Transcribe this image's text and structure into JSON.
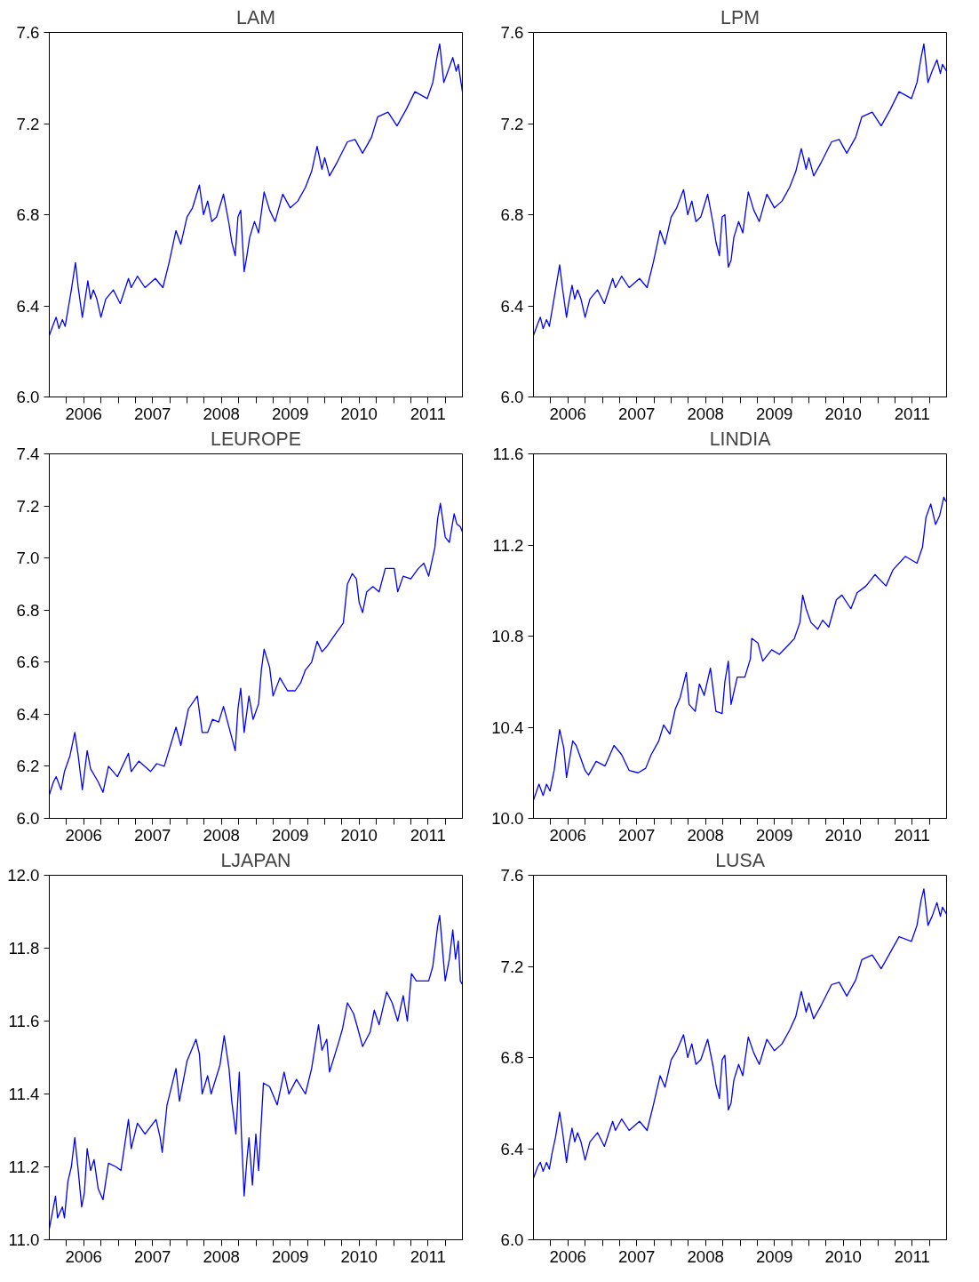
{
  "chart_data": [
    {
      "type": "line",
      "title": "LAM",
      "xlim": [
        2006,
        2012
      ],
      "ylim": [
        6.0,
        7.6
      ],
      "yticks": [
        {
          "value": 6.0,
          "label": "6.0"
        },
        6.4,
        6.8,
        7.2,
        7.6
      ],
      "grid": false,
      "xticks": [
        {
          "value": 2006.25,
          "label": null
        },
        {
          "value": 2006.5,
          "label": "2006"
        },
        {
          "value": 2006.75,
          "label": null
        },
        {
          "value": 2007,
          "label": null
        },
        {
          "value": 2007.25,
          "label": null
        },
        {
          "value": 2007.5,
          "label": "2007"
        },
        {
          "value": 2007.75,
          "label": null
        },
        {
          "value": 2008,
          "label": null
        },
        {
          "value": 2008.25,
          "label": null
        },
        {
          "value": 2008.5,
          "label": "2008"
        },
        {
          "value": 2008.75,
          "label": null
        },
        {
          "value": 2009,
          "label": null
        },
        {
          "value": 2009.25,
          "label": null
        },
        {
          "value": 2009.5,
          "label": "2009"
        },
        {
          "value": 2009.75,
          "label": null
        },
        {
          "value": 2010,
          "label": null
        },
        {
          "value": 2010.25,
          "label": null
        },
        {
          "value": 2010.5,
          "label": "2010"
        },
        {
          "value": 2010.75,
          "label": null
        },
        {
          "value": 2011,
          "label": null
        },
        {
          "value": 2011.25,
          "label": null
        },
        {
          "value": 2011.5,
          "label": "2011"
        },
        {
          "value": 2011.75,
          "label": null
        }
      ],
      "x": [
        2006.0,
        2006.06,
        2006.1,
        2006.14,
        2006.19,
        2006.23,
        2006.27,
        2006.32,
        2006.38,
        2006.42,
        2006.48,
        2006.51,
        2006.56,
        2006.6,
        2006.64,
        2006.69,
        2006.75,
        2006.82,
        2006.93,
        2007.03,
        2007.15,
        2007.19,
        2007.28,
        2007.39,
        2007.54,
        2007.65,
        2007.74,
        2007.84,
        2007.91,
        2008.0,
        2008.08,
        2008.18,
        2008.24,
        2008.3,
        2008.36,
        2008.43,
        2008.53,
        2008.61,
        2008.65,
        2008.7,
        2008.74,
        2008.78,
        2008.83,
        2008.87,
        2008.91,
        2008.98,
        2009.04,
        2009.12,
        2009.2,
        2009.28,
        2009.39,
        2009.5,
        2009.61,
        2009.72,
        2009.81,
        2009.89,
        2009.96,
        2010.0,
        2010.07,
        2010.18,
        2010.33,
        2010.44,
        2010.55,
        2010.68,
        2010.77,
        2010.92,
        2011.05,
        2011.18,
        2011.31,
        2011.49,
        2011.57,
        2011.63,
        2011.67,
        2011.73,
        2011.79,
        2011.86,
        2011.91,
        2011.94,
        2012.0
      ],
      "series": [
        {
          "color": "#0000ff",
          "values": [
            6.27,
            6.32,
            6.35,
            6.3,
            6.34,
            6.31,
            6.38,
            6.47,
            6.59,
            6.48,
            6.35,
            6.41,
            6.51,
            6.43,
            6.47,
            6.43,
            6.35,
            6.43,
            6.47,
            6.41,
            6.52,
            6.48,
            6.53,
            6.48,
            6.52,
            6.48,
            6.59,
            6.73,
            6.67,
            6.79,
            6.83,
            6.93,
            6.8,
            6.86,
            6.77,
            6.79,
            6.89,
            6.76,
            6.68,
            6.62,
            6.79,
            6.82,
            6.55,
            6.62,
            6.7,
            6.77,
            6.72,
            6.9,
            6.82,
            6.77,
            6.89,
            6.83,
            6.86,
            6.92,
            6.99,
            7.1,
            7.0,
            7.05,
            6.97,
            7.03,
            7.12,
            7.13,
            7.07,
            7.14,
            7.23,
            7.25,
            7.19,
            7.26,
            7.34,
            7.31,
            7.38,
            7.49,
            7.55,
            7.38,
            7.43,
            7.49,
            7.43,
            7.46,
            7.34
          ]
        }
      ]
    },
    {
      "type": "line",
      "title": "LPM",
      "xlim": [
        2006,
        2012
      ],
      "ylim": [
        6.0,
        7.6
      ],
      "yticks": [
        {
          "value": 6.0,
          "label": "6.0"
        },
        6.4,
        6.8,
        7.2,
        7.6
      ],
      "grid": false,
      "xticks": [
        {
          "value": 2006.25,
          "label": null
        },
        {
          "value": 2006.5,
          "label": "2006"
        },
        {
          "value": 2006.75,
          "label": null
        },
        {
          "value": 2007,
          "label": null
        },
        {
          "value": 2007.25,
          "label": null
        },
        {
          "value": 2007.5,
          "label": "2007"
        },
        {
          "value": 2007.75,
          "label": null
        },
        {
          "value": 2008,
          "label": null
        },
        {
          "value": 2008.25,
          "label": null
        },
        {
          "value": 2008.5,
          "label": "2008"
        },
        {
          "value": 2008.75,
          "label": null
        },
        {
          "value": 2009,
          "label": null
        },
        {
          "value": 2009.25,
          "label": null
        },
        {
          "value": 2009.5,
          "label": "2009"
        },
        {
          "value": 2009.75,
          "label": null
        },
        {
          "value": 2010,
          "label": null
        },
        {
          "value": 2010.25,
          "label": null
        },
        {
          "value": 2010.5,
          "label": "2010"
        },
        {
          "value": 2010.75,
          "label": null
        },
        {
          "value": 2011,
          "label": null
        },
        {
          "value": 2011.25,
          "label": null
        },
        {
          "value": 2011.5,
          "label": "2011"
        },
        {
          "value": 2011.75,
          "label": null
        }
      ],
      "x": [
        2006.0,
        2006.06,
        2006.1,
        2006.14,
        2006.19,
        2006.23,
        2006.27,
        2006.32,
        2006.38,
        2006.42,
        2006.48,
        2006.51,
        2006.56,
        2006.6,
        2006.64,
        2006.69,
        2006.75,
        2006.82,
        2006.93,
        2007.03,
        2007.15,
        2007.19,
        2007.28,
        2007.39,
        2007.54,
        2007.65,
        2007.74,
        2007.84,
        2007.91,
        2008.0,
        2008.08,
        2008.18,
        2008.24,
        2008.3,
        2008.36,
        2008.43,
        2008.53,
        2008.61,
        2008.65,
        2008.7,
        2008.74,
        2008.78,
        2008.83,
        2008.87,
        2008.91,
        2008.98,
        2009.04,
        2009.12,
        2009.2,
        2009.28,
        2009.39,
        2009.5,
        2009.61,
        2009.72,
        2009.81,
        2009.89,
        2009.96,
        2010.0,
        2010.07,
        2010.18,
        2010.33,
        2010.44,
        2010.55,
        2010.68,
        2010.77,
        2010.92,
        2011.05,
        2011.18,
        2011.31,
        2011.49,
        2011.57,
        2011.63,
        2011.67,
        2011.73,
        2011.79,
        2011.86,
        2011.91,
        2011.94,
        2012.0
      ],
      "series": [
        {
          "color": "#0000ff",
          "values": [
            6.27,
            6.32,
            6.35,
            6.3,
            6.34,
            6.31,
            6.38,
            6.47,
            6.58,
            6.48,
            6.35,
            6.41,
            6.49,
            6.43,
            6.47,
            6.43,
            6.35,
            6.43,
            6.47,
            6.41,
            6.52,
            6.48,
            6.53,
            6.48,
            6.52,
            6.48,
            6.59,
            6.73,
            6.67,
            6.79,
            6.83,
            6.91,
            6.8,
            6.86,
            6.77,
            6.79,
            6.89,
            6.76,
            6.68,
            6.62,
            6.79,
            6.8,
            6.57,
            6.6,
            6.7,
            6.77,
            6.72,
            6.9,
            6.82,
            6.77,
            6.89,
            6.83,
            6.86,
            6.92,
            6.99,
            7.09,
            7.0,
            7.05,
            6.97,
            7.03,
            7.12,
            7.13,
            7.07,
            7.14,
            7.23,
            7.25,
            7.19,
            7.26,
            7.34,
            7.31,
            7.38,
            7.49,
            7.55,
            7.38,
            7.43,
            7.48,
            7.42,
            7.46,
            7.43
          ]
        }
      ]
    },
    {
      "type": "line",
      "title": "LEUROPE",
      "xlim": [
        2006,
        2012
      ],
      "ylim": [
        6.0,
        7.4
      ],
      "yticks": [
        {
          "value": 6.0,
          "label": "6.0"
        },
        6.2,
        6.4,
        6.6,
        6.8,
        {
          "value": 7.0,
          "label": "7.0"
        },
        7.2,
        7.4
      ],
      "grid": false,
      "xticks": [
        {
          "value": 2006.25,
          "label": null
        },
        {
          "value": 2006.5,
          "label": "2006"
        },
        {
          "value": 2006.75,
          "label": null
        },
        {
          "value": 2007,
          "label": null
        },
        {
          "value": 2007.25,
          "label": null
        },
        {
          "value": 2007.5,
          "label": "2007"
        },
        {
          "value": 2007.75,
          "label": null
        },
        {
          "value": 2008,
          "label": null
        },
        {
          "value": 2008.25,
          "label": null
        },
        {
          "value": 2008.5,
          "label": "2008"
        },
        {
          "value": 2008.75,
          "label": null
        },
        {
          "value": 2009,
          "label": null
        },
        {
          "value": 2009.25,
          "label": null
        },
        {
          "value": 2009.5,
          "label": "2009"
        },
        {
          "value": 2009.75,
          "label": null
        },
        {
          "value": 2010,
          "label": null
        },
        {
          "value": 2010.25,
          "label": null
        },
        {
          "value": 2010.5,
          "label": "2010"
        },
        {
          "value": 2010.75,
          "label": null
        },
        {
          "value": 2011,
          "label": null
        },
        {
          "value": 2011.25,
          "label": null
        },
        {
          "value": 2011.5,
          "label": "2011"
        },
        {
          "value": 2011.75,
          "label": null
        }
      ],
      "x": [
        2006.0,
        2006.06,
        2006.1,
        2006.17,
        2006.22,
        2006.3,
        2006.37,
        2006.42,
        2006.48,
        2006.55,
        2006.6,
        2006.71,
        2006.78,
        2006.86,
        2006.99,
        2007.15,
        2007.19,
        2007.3,
        2007.47,
        2007.56,
        2007.67,
        2007.76,
        2007.84,
        2007.91,
        2008.02,
        2008.15,
        2008.22,
        2008.3,
        2008.37,
        2008.46,
        2008.53,
        2008.63,
        2008.7,
        2008.74,
        2008.78,
        2008.83,
        2008.9,
        2008.96,
        2009.04,
        2009.08,
        2009.12,
        2009.2,
        2009.25,
        2009.35,
        2009.46,
        2009.57,
        2009.65,
        2009.72,
        2009.81,
        2009.89,
        2009.96,
        2010.03,
        2010.16,
        2010.27,
        2010.33,
        2010.4,
        2010.46,
        2010.5,
        2010.55,
        2010.61,
        2010.7,
        2010.79,
        2010.88,
        2011.01,
        2011.06,
        2011.14,
        2011.25,
        2011.36,
        2011.44,
        2011.51,
        2011.6,
        2011.64,
        2011.68,
        2011.75,
        2011.81,
        2011.88,
        2011.92,
        2011.97,
        2012.0
      ],
      "series": [
        {
          "color": "#0000ff",
          "values": [
            6.09,
            6.14,
            6.16,
            6.11,
            6.18,
            6.24,
            6.33,
            6.24,
            6.11,
            6.26,
            6.19,
            6.14,
            6.1,
            6.2,
            6.16,
            6.25,
            6.18,
            6.22,
            6.18,
            6.21,
            6.2,
            6.28,
            6.35,
            6.28,
            6.42,
            6.47,
            6.33,
            6.33,
            6.38,
            6.37,
            6.43,
            6.33,
            6.26,
            6.42,
            6.5,
            6.33,
            6.47,
            6.38,
            6.44,
            6.57,
            6.65,
            6.58,
            6.47,
            6.54,
            6.49,
            6.49,
            6.52,
            6.57,
            6.6,
            6.68,
            6.64,
            6.66,
            6.71,
            6.75,
            6.9,
            6.94,
            6.92,
            6.83,
            6.79,
            6.87,
            6.89,
            6.87,
            6.96,
            6.96,
            6.87,
            6.93,
            6.92,
            6.96,
            6.98,
            6.93,
            7.04,
            7.15,
            7.21,
            7.08,
            7.06,
            7.17,
            7.13,
            7.12,
            7.1
          ]
        }
      ]
    },
    {
      "type": "line",
      "title": "LINDIA",
      "xlim": [
        2006,
        2012
      ],
      "ylim": [
        10.0,
        11.6
      ],
      "yticks": [
        {
          "value": 10.0,
          "label": "10.0"
        },
        10.4,
        10.8,
        11.2,
        11.6
      ],
      "grid": false,
      "xticks": [
        {
          "value": 2006.25,
          "label": null
        },
        {
          "value": 2006.5,
          "label": "2006"
        },
        {
          "value": 2006.75,
          "label": null
        },
        {
          "value": 2007,
          "label": null
        },
        {
          "value": 2007.25,
          "label": null
        },
        {
          "value": 2007.5,
          "label": "2007"
        },
        {
          "value": 2007.75,
          "label": null
        },
        {
          "value": 2008,
          "label": null
        },
        {
          "value": 2008.25,
          "label": null
        },
        {
          "value": 2008.5,
          "label": "2008"
        },
        {
          "value": 2008.75,
          "label": null
        },
        {
          "value": 2009,
          "label": null
        },
        {
          "value": 2009.25,
          "label": null
        },
        {
          "value": 2009.5,
          "label": "2009"
        },
        {
          "value": 2009.75,
          "label": null
        },
        {
          "value": 2010,
          "label": null
        },
        {
          "value": 2010.25,
          "label": null
        },
        {
          "value": 2010.5,
          "label": "2010"
        },
        {
          "value": 2010.75,
          "label": null
        },
        {
          "value": 2011,
          "label": null
        },
        {
          "value": 2011.25,
          "label": null
        },
        {
          "value": 2011.5,
          "label": "2011"
        },
        {
          "value": 2011.75,
          "label": null
        }
      ],
      "x": [
        2006.0,
        2006.08,
        2006.14,
        2006.19,
        2006.24,
        2006.3,
        2006.38,
        2006.44,
        2006.48,
        2006.57,
        2006.62,
        2006.75,
        2006.8,
        2006.91,
        2007.04,
        2007.17,
        2007.28,
        2007.39,
        2007.52,
        2007.63,
        2007.71,
        2007.82,
        2007.89,
        2007.98,
        2008.06,
        2008.13,
        2008.22,
        2008.26,
        2008.35,
        2008.41,
        2008.48,
        2008.57,
        2008.65,
        2008.74,
        2008.78,
        2008.83,
        2008.87,
        2008.96,
        2009.07,
        2009.15,
        2009.17,
        2009.26,
        2009.33,
        2009.46,
        2009.57,
        2009.7,
        2009.79,
        2009.87,
        2009.91,
        2009.96,
        2010.03,
        2010.13,
        2010.2,
        2010.29,
        2010.4,
        2010.48,
        2010.61,
        2010.7,
        2010.83,
        2010.96,
        2011.12,
        2011.22,
        2011.4,
        2011.57,
        2011.65,
        2011.7,
        2011.77,
        2011.84,
        2011.9,
        2011.96,
        2011.99
      ],
      "series": [
        {
          "color": "#0000ff",
          "values": [
            10.08,
            10.15,
            10.1,
            10.15,
            10.12,
            10.21,
            10.39,
            10.31,
            10.18,
            10.34,
            10.32,
            10.21,
            10.19,
            10.25,
            10.23,
            10.32,
            10.28,
            10.21,
            10.2,
            10.22,
            10.28,
            10.34,
            10.41,
            10.37,
            10.48,
            10.53,
            10.64,
            10.5,
            10.47,
            10.59,
            10.54,
            10.66,
            10.47,
            10.46,
            10.6,
            10.69,
            10.5,
            10.62,
            10.62,
            10.7,
            10.79,
            10.77,
            10.69,
            10.74,
            10.72,
            10.76,
            10.79,
            10.86,
            10.98,
            10.92,
            10.86,
            10.83,
            10.87,
            10.84,
            10.96,
            10.98,
            10.92,
            10.99,
            11.02,
            11.07,
            11.02,
            11.09,
            11.15,
            11.12,
            11.19,
            11.32,
            11.38,
            11.29,
            11.33,
            11.41,
            11.39
          ]
        }
      ]
    },
    {
      "type": "line",
      "title": "LJAPAN",
      "xlim": [
        2006,
        2012
      ],
      "ylim": [
        11.0,
        12.0
      ],
      "yticks": [
        {
          "value": 11.0,
          "label": "11.0"
        },
        11.2,
        11.4,
        11.6,
        11.8,
        {
          "value": 12.0,
          "label": "12.0"
        }
      ],
      "grid": false,
      "xticks": [
        {
          "value": 2006.25,
          "label": null
        },
        {
          "value": 2006.5,
          "label": "2006"
        },
        {
          "value": 2006.75,
          "label": null
        },
        {
          "value": 2007,
          "label": null
        },
        {
          "value": 2007.25,
          "label": null
        },
        {
          "value": 2007.5,
          "label": "2007"
        },
        {
          "value": 2007.75,
          "label": null
        },
        {
          "value": 2008,
          "label": null
        },
        {
          "value": 2008.25,
          "label": null
        },
        {
          "value": 2008.5,
          "label": "2008"
        },
        {
          "value": 2008.75,
          "label": null
        },
        {
          "value": 2009,
          "label": null
        },
        {
          "value": 2009.25,
          "label": null
        },
        {
          "value": 2009.5,
          "label": "2009"
        },
        {
          "value": 2009.75,
          "label": null
        },
        {
          "value": 2010,
          "label": null
        },
        {
          "value": 2010.25,
          "label": null
        },
        {
          "value": 2010.5,
          "label": "2010"
        },
        {
          "value": 2010.75,
          "label": null
        },
        {
          "value": 2011,
          "label": null
        },
        {
          "value": 2011.25,
          "label": null
        },
        {
          "value": 2011.5,
          "label": "2011"
        },
        {
          "value": 2011.75,
          "label": null
        }
      ],
      "x": [
        2006.0,
        2006.06,
        2006.09,
        2006.12,
        2006.19,
        2006.22,
        2006.27,
        2006.32,
        2006.37,
        2006.42,
        2006.47,
        2006.51,
        2006.55,
        2006.6,
        2006.65,
        2006.71,
        2006.78,
        2006.86,
        2006.97,
        2007.04,
        2007.15,
        2007.19,
        2007.28,
        2007.39,
        2007.55,
        2007.61,
        2007.64,
        2007.71,
        2007.84,
        2007.89,
        2008.0,
        2008.13,
        2008.18,
        2008.22,
        2008.3,
        2008.35,
        2008.48,
        2008.54,
        2008.61,
        2008.65,
        2008.71,
        2008.76,
        2008.79,
        2008.83,
        2008.87,
        2008.9,
        2008.95,
        2009.0,
        2009.04,
        2009.11,
        2009.2,
        2009.31,
        2009.41,
        2009.48,
        2009.59,
        2009.72,
        2009.81,
        2009.91,
        2009.96,
        2010.03,
        2010.07,
        2010.2,
        2010.26,
        2010.33,
        2010.42,
        2010.48,
        2010.55,
        2010.66,
        2010.72,
        2010.79,
        2010.9,
        2010.98,
        2011.06,
        2011.14,
        2011.2,
        2011.26,
        2011.33,
        2011.51,
        2011.57,
        2011.64,
        2011.67,
        2011.75,
        2011.81,
        2011.86,
        2011.9,
        2011.94,
        2011.97,
        2012.0
      ],
      "series": [
        {
          "color": "#0000ff",
          "values": [
            11.03,
            11.09,
            11.12,
            11.06,
            11.09,
            11.06,
            11.16,
            11.2,
            11.28,
            11.19,
            11.09,
            11.13,
            11.25,
            11.19,
            11.22,
            11.14,
            11.11,
            11.21,
            11.2,
            11.19,
            11.33,
            11.25,
            11.32,
            11.29,
            11.33,
            11.28,
            11.24,
            11.37,
            11.47,
            11.38,
            11.49,
            11.55,
            11.51,
            11.4,
            11.45,
            11.4,
            11.48,
            11.56,
            11.47,
            11.38,
            11.29,
            11.46,
            11.29,
            11.12,
            11.22,
            11.28,
            11.15,
            11.29,
            11.19,
            11.43,
            11.42,
            11.37,
            11.46,
            11.4,
            11.44,
            11.4,
            11.47,
            11.59,
            11.52,
            11.55,
            11.46,
            11.54,
            11.58,
            11.65,
            11.62,
            11.58,
            11.53,
            11.57,
            11.63,
            11.59,
            11.68,
            11.65,
            11.6,
            11.67,
            11.6,
            11.73,
            11.71,
            11.71,
            11.75,
            11.86,
            11.89,
            11.71,
            11.77,
            11.85,
            11.77,
            11.82,
            11.71,
            11.7
          ]
        }
      ]
    },
    {
      "type": "line",
      "title": "LUSA",
      "xlim": [
        2006,
        2012
      ],
      "ylim": [
        6.0,
        7.6
      ],
      "yticks": [
        {
          "value": 6.0,
          "label": "6.0"
        },
        6.4,
        6.8,
        7.2,
        7.6
      ],
      "grid": false,
      "xticks": [
        {
          "value": 2006.25,
          "label": null
        },
        {
          "value": 2006.5,
          "label": "2006"
        },
        {
          "value": 2006.75,
          "label": null
        },
        {
          "value": 2007,
          "label": null
        },
        {
          "value": 2007.25,
          "label": null
        },
        {
          "value": 2007.5,
          "label": "2007"
        },
        {
          "value": 2007.75,
          "label": null
        },
        {
          "value": 2008,
          "label": null
        },
        {
          "value": 2008.25,
          "label": null
        },
        {
          "value": 2008.5,
          "label": "2008"
        },
        {
          "value": 2008.75,
          "label": null
        },
        {
          "value": 2009,
          "label": null
        },
        {
          "value": 2009.25,
          "label": null
        },
        {
          "value": 2009.5,
          "label": "2009"
        },
        {
          "value": 2009.75,
          "label": null
        },
        {
          "value": 2010,
          "label": null
        },
        {
          "value": 2010.25,
          "label": null
        },
        {
          "value": 2010.5,
          "label": "2010"
        },
        {
          "value": 2010.75,
          "label": null
        },
        {
          "value": 2011,
          "label": null
        },
        {
          "value": 2011.25,
          "label": null
        },
        {
          "value": 2011.5,
          "label": "2011"
        },
        {
          "value": 2011.75,
          "label": null
        }
      ],
      "x": [
        2006.0,
        2006.06,
        2006.1,
        2006.14,
        2006.19,
        2006.23,
        2006.27,
        2006.32,
        2006.38,
        2006.42,
        2006.48,
        2006.51,
        2006.56,
        2006.6,
        2006.64,
        2006.69,
        2006.75,
        2006.82,
        2006.93,
        2007.03,
        2007.15,
        2007.19,
        2007.28,
        2007.39,
        2007.54,
        2007.65,
        2007.74,
        2007.84,
        2007.91,
        2008.0,
        2008.08,
        2008.18,
        2008.24,
        2008.3,
        2008.36,
        2008.43,
        2008.53,
        2008.61,
        2008.65,
        2008.7,
        2008.74,
        2008.78,
        2008.83,
        2008.87,
        2008.91,
        2008.98,
        2009.04,
        2009.12,
        2009.2,
        2009.28,
        2009.39,
        2009.5,
        2009.61,
        2009.72,
        2009.81,
        2009.89,
        2009.96,
        2010.0,
        2010.07,
        2010.18,
        2010.33,
        2010.44,
        2010.55,
        2010.68,
        2010.77,
        2010.92,
        2011.05,
        2011.18,
        2011.31,
        2011.49,
        2011.57,
        2011.63,
        2011.67,
        2011.73,
        2011.79,
        2011.86,
        2011.91,
        2011.94,
        2012.0
      ],
      "series": [
        {
          "color": "#0000ff",
          "values": [
            6.27,
            6.32,
            6.34,
            6.3,
            6.34,
            6.31,
            6.38,
            6.45,
            6.56,
            6.48,
            6.34,
            6.41,
            6.49,
            6.43,
            6.47,
            6.43,
            6.35,
            6.43,
            6.47,
            6.41,
            6.52,
            6.48,
            6.53,
            6.48,
            6.52,
            6.48,
            6.59,
            6.72,
            6.67,
            6.79,
            6.83,
            6.9,
            6.8,
            6.86,
            6.77,
            6.79,
            6.88,
            6.76,
            6.68,
            6.62,
            6.79,
            6.81,
            6.57,
            6.6,
            6.7,
            6.77,
            6.72,
            6.89,
            6.82,
            6.77,
            6.88,
            6.83,
            6.86,
            6.92,
            6.98,
            7.09,
            7.0,
            7.04,
            6.97,
            7.03,
            7.12,
            7.13,
            7.07,
            7.14,
            7.23,
            7.25,
            7.19,
            7.26,
            7.33,
            7.31,
            7.38,
            7.49,
            7.54,
            7.38,
            7.42,
            7.48,
            7.42,
            7.46,
            7.43
          ]
        }
      ]
    }
  ]
}
